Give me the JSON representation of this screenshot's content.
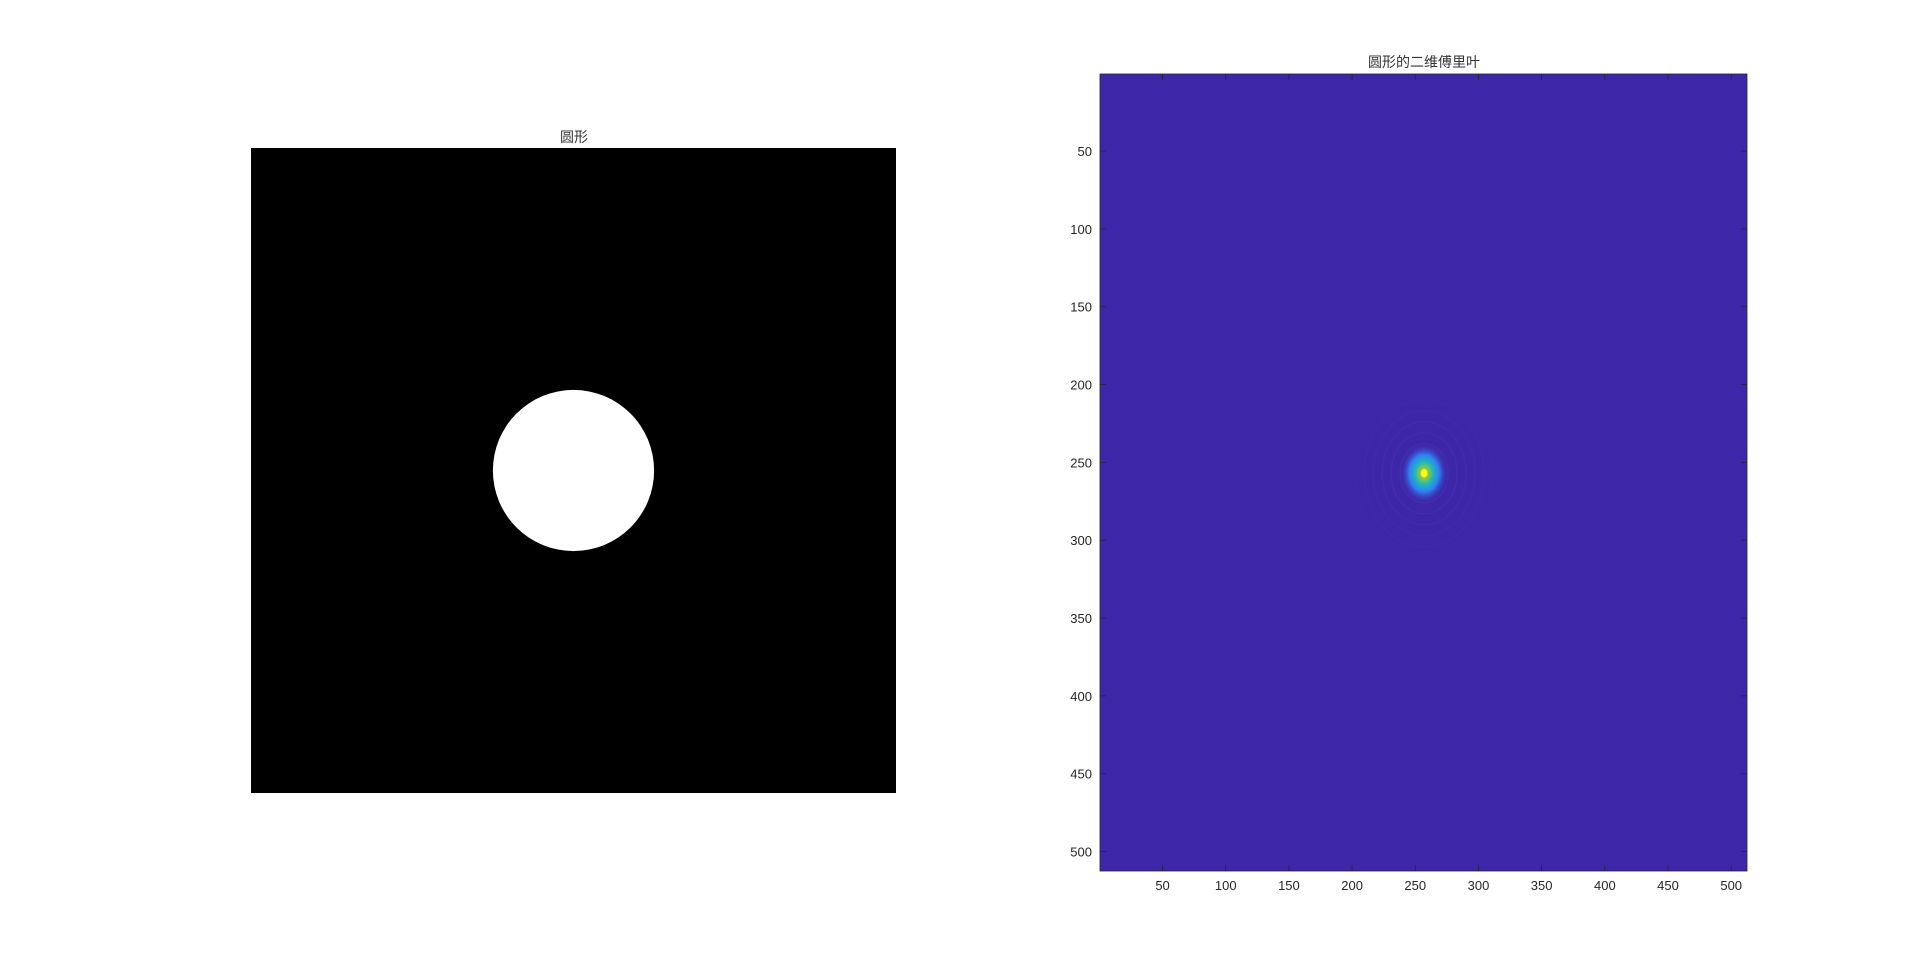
{
  "chart_data": [
    {
      "type": "heatmap",
      "title": "圆形",
      "image_size": [
        512,
        512
      ],
      "circle": {
        "center": [
          256,
          256
        ],
        "radius": 64
      },
      "background_color": "#000000",
      "foreground_color": "#ffffff",
      "axes_visible": false
    },
    {
      "type": "heatmap",
      "title": "圆形的二维傅里叶",
      "xlim": [
        0.5,
        512.5
      ],
      "ylim": [
        0.5,
        512.5
      ],
      "y_reversed": true,
      "peak": {
        "x": 257,
        "y": 257
      },
      "xticks": [
        "50",
        "100",
        "150",
        "200",
        "250",
        "300",
        "350",
        "400",
        "450",
        "500"
      ],
      "yticks": [
        "50",
        "100",
        "150",
        "200",
        "250",
        "300",
        "350",
        "400",
        "450",
        "500"
      ],
      "colormap": [
        "#3e26a8",
        "#2f7ff5",
        "#1fb8b9",
        "#8cc742",
        "#f9fb15"
      ]
    }
  ]
}
